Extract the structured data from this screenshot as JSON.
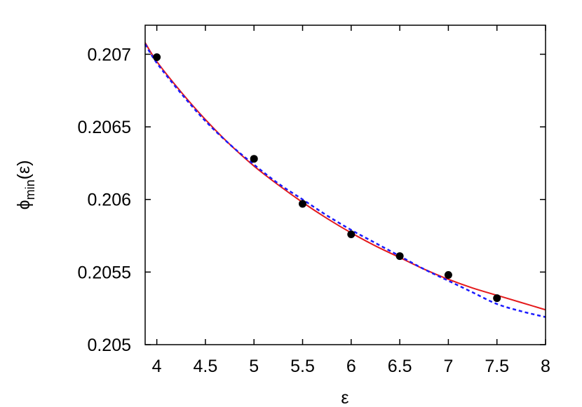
{
  "chart_data": {
    "type": "scatter",
    "title": "",
    "xlabel": "ε",
    "ylabel": {
      "base": "ϕ",
      "sub": "min",
      "arg": "(ε)"
    },
    "xlim": [
      3.88,
      8.0
    ],
    "ylim": [
      0.205,
      0.2072
    ],
    "x_ticks": [
      4,
      4.5,
      5,
      5.5,
      6,
      6.5,
      7,
      7.5,
      8
    ],
    "x_tick_labels": [
      "4",
      "4.5",
      "5",
      "5.5",
      "6",
      "6.5",
      "7",
      "7.5",
      "8"
    ],
    "y_ticks": [
      0.205,
      0.2055,
      0.206,
      0.2065,
      0.207
    ],
    "y_tick_labels": [
      "0.205",
      "0.2055",
      "0.206",
      "0.2065",
      "0.207"
    ],
    "grid": false,
    "legend": "none",
    "series": [
      {
        "kind": "points",
        "color": "#000000",
        "x": [
          4.0,
          5.0,
          5.5,
          6.0,
          6.5,
          7.0,
          7.5
        ],
        "y": [
          0.20698,
          0.20628,
          0.20597,
          0.20576,
          0.20561,
          0.20548,
          0.20532
        ]
      },
      {
        "kind": "line",
        "style": "solid",
        "color": "#e41a1c",
        "x": [
          3.88,
          4.0,
          4.25,
          4.5,
          4.75,
          5.0,
          5.25,
          5.5,
          5.75,
          6.0,
          6.25,
          6.5,
          6.75,
          7.0,
          7.25,
          7.5,
          7.75,
          8.0
        ],
        "y": [
          0.20708,
          0.20695,
          0.20674,
          0.20655,
          0.20638,
          0.20623,
          0.2061,
          0.20598,
          0.20587,
          0.20577,
          0.20568,
          0.2056,
          0.20552,
          0.20545,
          0.20539,
          0.20534,
          0.20529,
          0.20524
        ]
      },
      {
        "kind": "line",
        "style": "dashed",
        "color": "#1a1aff",
        "x": [
          3.88,
          4.0,
          4.25,
          4.5,
          4.75,
          5.0,
          5.25,
          5.5,
          5.75,
          6.0,
          6.25,
          6.5,
          6.75,
          7.0,
          7.25,
          7.5,
          7.75,
          8.0
        ],
        "y": [
          0.20707,
          0.20694,
          0.20673,
          0.20654,
          0.20638,
          0.20624,
          0.20611,
          0.206,
          0.20589,
          0.20579,
          0.2057,
          0.20561,
          0.20552,
          0.20544,
          0.20536,
          0.20528,
          0.20523,
          0.20519
        ]
      }
    ]
  }
}
